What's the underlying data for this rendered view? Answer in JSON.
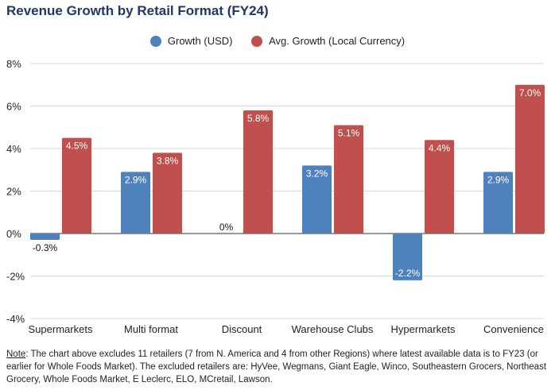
{
  "chart_data": {
    "type": "bar",
    "title": "Revenue Growth by Retail Format (FY24)",
    "categories": [
      "Supermarkets",
      "Multi format",
      "Discount",
      "Warehouse Clubs",
      "Hypermarkets",
      "Convenience"
    ],
    "series": [
      {
        "name": "Growth (USD)",
        "color": "#4f81bd",
        "values": [
          -0.3,
          2.9,
          0,
          3.2,
          -2.2,
          2.9
        ],
        "labels": [
          "-0.3%",
          "2.9%",
          "0%",
          "3.2%",
          "-2.2%",
          "2.9%"
        ]
      },
      {
        "name": "Avg. Growth (Local Currency)",
        "color": "#c0504d",
        "values": [
          4.5,
          3.8,
          5.8,
          5.1,
          4.4,
          7.0
        ],
        "labels": [
          "4.5%",
          "3.8%",
          "5.8%",
          "5.1%",
          "4.4%",
          "7.0%"
        ]
      }
    ],
    "ylim": [
      -4,
      8
    ],
    "yticks": [
      8,
      6,
      4,
      2,
      0,
      -2,
      -4
    ],
    "ytick_labels": [
      "8%",
      "6%",
      "4%",
      "2%",
      "0%",
      "-2%",
      "-4%"
    ],
    "grid": true,
    "legend": "top"
  },
  "note": {
    "label": "Note",
    "text": ": The chart above excludes 11 retailers (7 from N. America and 4 from other Regions) where latest available data is to FY23 (or earlier for Whole Foods Market). The excluded retailers are: HyVee, Wegmans, Giant Eagle, Winco, Southeastern Grocers, Northeast Grocery, Whole Foods Market, E Leclerc, ELO, MCretail, Lawson."
  }
}
